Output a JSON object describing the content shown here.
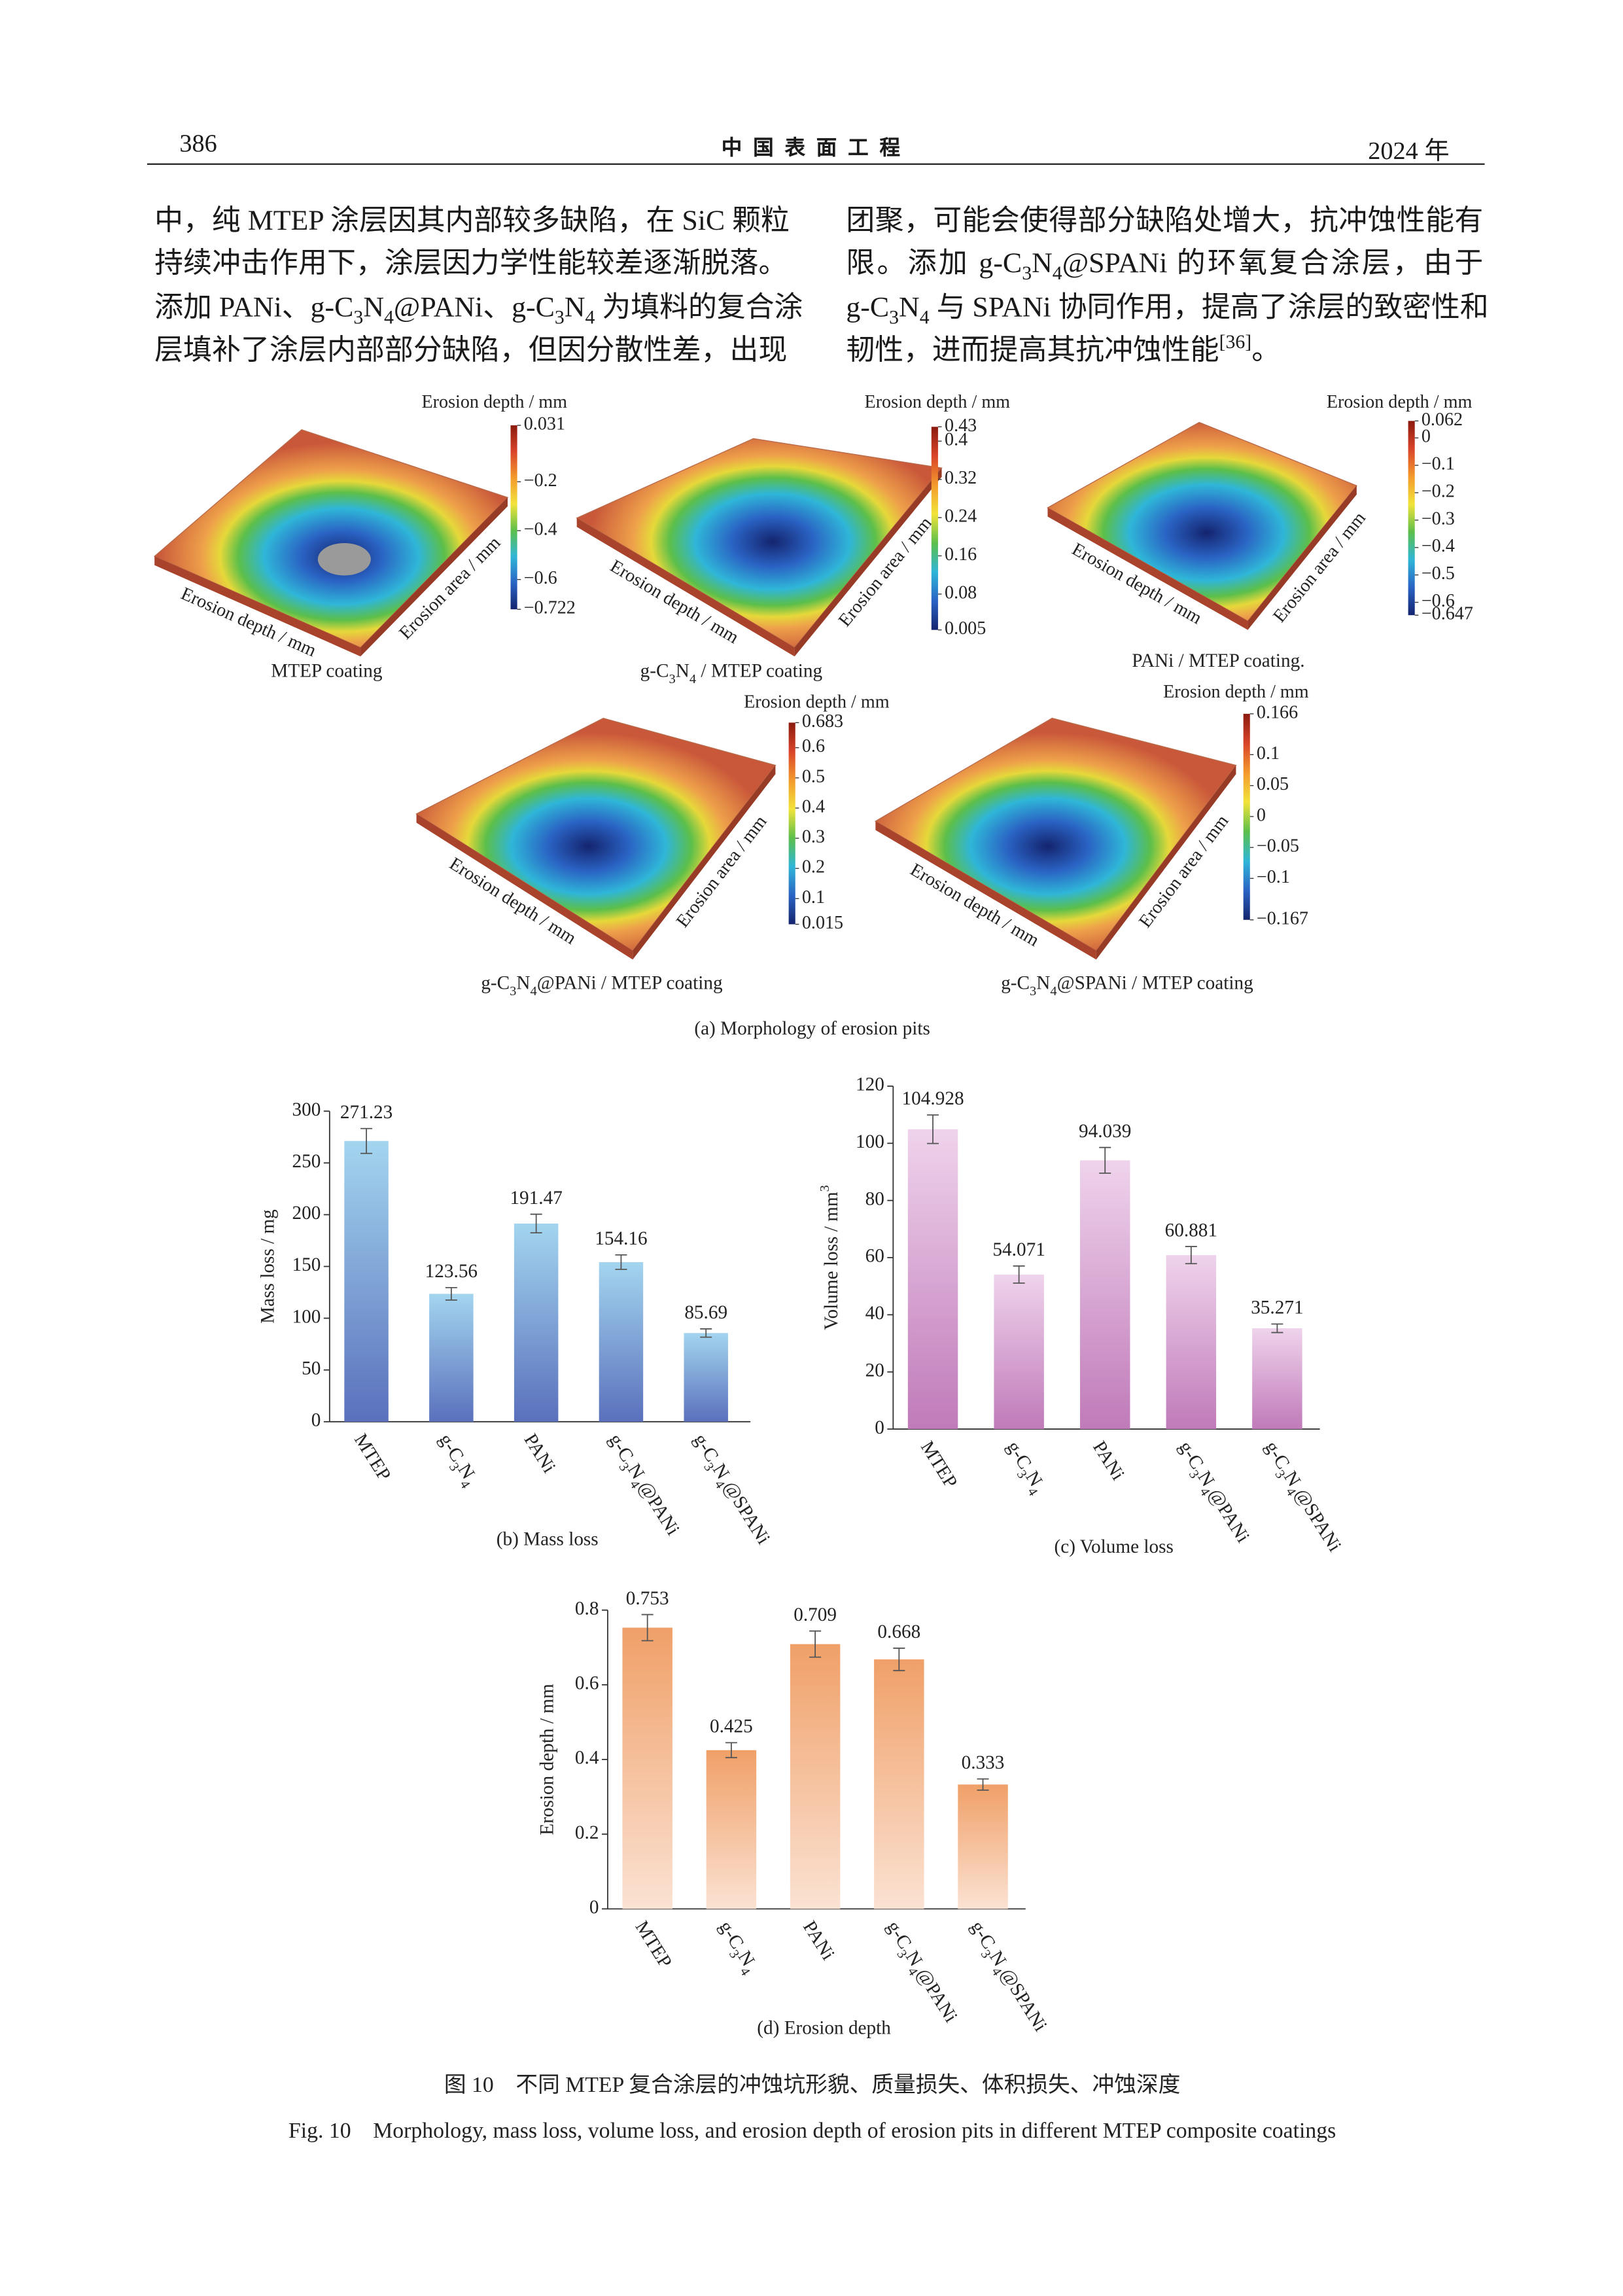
{
  "header": {
    "page_number": "386",
    "journal": "中 国 表 面 工 程",
    "year": "2024 年"
  },
  "paragraphs": {
    "left": [
      "中，纯 MTEP 涂层因其内部较多缺陷，在 SiC 颗粒",
      "持续冲击作用下，涂层因力学性能较差逐渐脱落。",
      "添加 PANi、g-C3N4@PANi、g-C3N4 为填料的复合涂",
      "层填补了涂层内部部分缺陷，但因分散性差，出现"
    ],
    "right": [
      "团聚，可能会使得部分缺陷处增大，抗冲蚀性能有",
      "限。添加 g-C3N4@SPANi 的环氧复合涂层，由于",
      "g-C3N4 与 SPANi 协同作用，提高了涂层的致密性和",
      [
        "韧性，进而提高其抗冲蚀性能",
        "[36]",
        "。"
      ]
    ]
  },
  "figure": {
    "panel_a_caption": "(a) Morphology of erosion pits",
    "caption_cn": "图 10　不同 MTEP 复合涂层的冲蚀坑形貌、质量损失、体积损失、冲蚀深度",
    "caption_en": "Fig. 10　Morphology, mass loss, volume loss, and erosion depth of erosion pits in different MTEP composite coatings"
  },
  "chart_data": [
    {
      "type": "surface",
      "caption": "MTEP coating",
      "colorbar_title": "Erosion depth / mm",
      "xlabel": "Erosion depth / mm",
      "ylabel": "Erosion area / mm",
      "clim": [
        -0.722,
        0.031
      ],
      "cticks": [
        0.031,
        {
          "value": -0.2,
          "label": "−0.2"
        },
        {
          "value": -0.4,
          "label": "−0.4"
        },
        {
          "value": -0.6,
          "label": "−0.6"
        },
        {
          "value": -0.722,
          "label": "−0.722"
        }
      ]
    },
    {
      "type": "surface",
      "caption": "g-C3N4 / MTEP coating",
      "colorbar_title": "Erosion depth / mm",
      "xlabel": "Erosion depth / mm",
      "ylabel": "Erosion area / mm",
      "clim": [
        0.005,
        0.43
      ],
      "cticks": [
        0.43,
        0.4,
        0.32,
        0.24,
        0.16,
        0.08,
        0.005
      ]
    },
    {
      "type": "surface",
      "caption": "PANi / MTEP coating.",
      "colorbar_title": "Erosion depth / mm",
      "xlabel": "Erosion depth / mm",
      "ylabel": "Erosion area / mm",
      "clim": [
        -0.647,
        0.062
      ],
      "cticks": [
        0.062,
        0,
        {
          "value": -0.1,
          "label": "−0.1"
        },
        {
          "value": -0.2,
          "label": "−0.2"
        },
        {
          "value": -0.3,
          "label": "−0.3"
        },
        {
          "value": -0.4,
          "label": "−0.4"
        },
        {
          "value": -0.5,
          "label": "−0.5"
        },
        {
          "value": -0.6,
          "label": "−0.6"
        },
        {
          "value": -0.647,
          "label": "−0.647"
        }
      ]
    },
    {
      "type": "surface",
      "caption": "g-C3N4@PANi / MTEP coating",
      "colorbar_title": "Erosion depth / mm",
      "xlabel": "Erosion depth / mm",
      "ylabel": "Erosion area / mm",
      "clim": [
        0.015,
        0.683
      ],
      "cticks": [
        0.683,
        0.6,
        0.5,
        0.4,
        0.3,
        0.2,
        0.1,
        0.015
      ]
    },
    {
      "type": "surface",
      "caption": "g-C3N4@SPANi / MTEP coating",
      "colorbar_title": "Erosion depth / mm",
      "xlabel": "Erosion depth / mm",
      "ylabel": "Erosion area / mm",
      "clim": [
        -0.167,
        0.166
      ],
      "cticks": [
        0.166,
        0.1,
        0.05,
        0,
        {
          "value": -0.05,
          "label": "−0.05"
        },
        {
          "value": -0.1,
          "label": "−0.1"
        },
        {
          "value": -0.167,
          "label": "−0.167"
        }
      ]
    },
    {
      "type": "bar",
      "caption": "(b) Mass loss",
      "ylabel": "Mass loss / mg",
      "categories": [
        "MTEP",
        "g-C3N4",
        "PANi",
        "g-C3N4@PANi",
        "g-C3N4@SPANi"
      ],
      "values": [
        271.23,
        123.56,
        191.47,
        154.16,
        85.69
      ],
      "errors": [
        12,
        6,
        9,
        7,
        4
      ],
      "gradient": [
        "#a3d5ef",
        "#5a70bc"
      ],
      "ylim": [
        0,
        300
      ],
      "yticks": [
        0,
        50,
        100,
        150,
        200,
        250,
        300
      ]
    },
    {
      "type": "bar",
      "caption": "(c) Volume loss",
      "ylabel": "Volume loss / mm3",
      "categories": [
        "MTEP",
        "g-C3N4",
        "PANi",
        "g-C3N4@PANi",
        "g-C3N4@SPANi"
      ],
      "values": [
        104.928,
        54.071,
        94.039,
        60.881,
        35.271
      ],
      "errors": [
        5,
        3,
        4.5,
        3,
        1.5
      ],
      "gradient": [
        "#efd3ec",
        "#c07ab9"
      ],
      "ylim": [
        0,
        120
      ],
      "yticks": [
        0,
        20,
        40,
        60,
        80,
        100,
        120
      ]
    },
    {
      "type": "bar",
      "caption": "(d) Erosion depth",
      "ylabel": "Erosion depth / mm",
      "categories": [
        "MTEP",
        "g-C3N4",
        "PANi",
        "g-C3N4@PANi",
        "g-C3N4@SPANi"
      ],
      "values": [
        0.753,
        0.425,
        0.709,
        0.668,
        0.333
      ],
      "errors": [
        0.035,
        0.02,
        0.035,
        0.03,
        0.015
      ],
      "gradient": [
        "#f0a068",
        "#fbe2d3"
      ],
      "ylim": [
        0,
        0.8
      ],
      "yticks": [
        0,
        0.2,
        0.4,
        0.6,
        0.8
      ]
    }
  ]
}
